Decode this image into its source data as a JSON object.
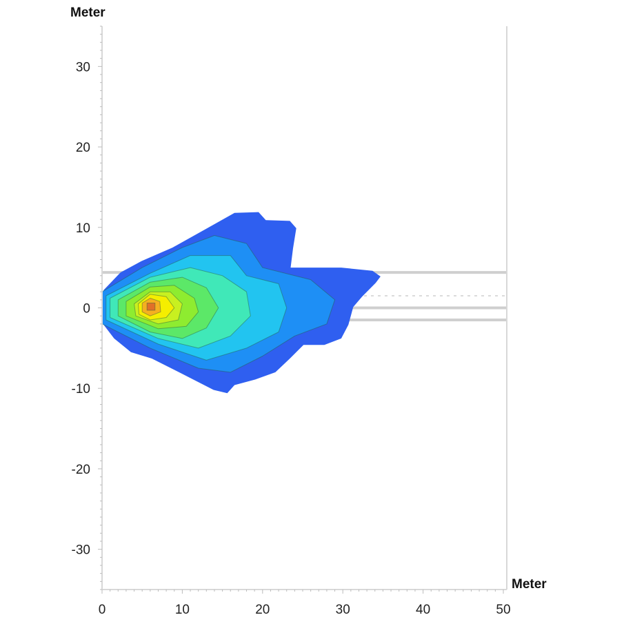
{
  "chart_data": {
    "type": "heatmap",
    "subtype": "filled-contour",
    "title": "",
    "xlabel": "Meter",
    "ylabel": "Meter",
    "xlim": [
      0,
      50
    ],
    "ylim": [
      -35,
      35
    ],
    "xticks": [
      0,
      10,
      20,
      30,
      40,
      50
    ],
    "yticks": [
      30,
      20,
      10,
      0,
      -10,
      -20,
      -30
    ],
    "grid": false,
    "legend": "none",
    "peak": [
      6,
      0.2
    ],
    "reference_lines": [
      {
        "y": 4.4,
        "style": "solid"
      },
      {
        "y": 1.5,
        "style": "dashed"
      },
      {
        "y": 0,
        "style": "solid"
      },
      {
        "y": -1.5,
        "style": "solid"
      }
    ],
    "contour_levels": [
      {
        "color": "#2f5ff0",
        "points": [
          [
            0.2,
            2.2
          ],
          [
            2.3,
            4.4
          ],
          [
            4.9,
            5.8
          ],
          [
            8.8,
            7.5
          ],
          [
            13.1,
            9.9
          ],
          [
            16.5,
            11.8
          ],
          [
            19.5,
            11.9
          ],
          [
            20.4,
            10.9
          ],
          [
            23.4,
            10.8
          ],
          [
            24.2,
            9.9
          ],
          [
            23.8,
            7.4
          ],
          [
            23.5,
            5.0
          ],
          [
            29.8,
            5.0
          ],
          [
            33.7,
            4.6
          ],
          [
            34.7,
            3.9
          ],
          [
            34.1,
            3.1
          ],
          [
            32.4,
            1.4
          ],
          [
            31.3,
            0.1
          ],
          [
            30.7,
            -2.1
          ],
          [
            29.8,
            -3.8
          ],
          [
            27.7,
            -4.6
          ],
          [
            25.1,
            -4.6
          ],
          [
            23.4,
            -6.3
          ],
          [
            21.6,
            -8.0
          ],
          [
            19.1,
            -8.9
          ],
          [
            16.5,
            -9.6
          ],
          [
            15.6,
            -10.6
          ],
          [
            13.9,
            -10.2
          ],
          [
            9.6,
            -8.0
          ],
          [
            6.2,
            -6.3
          ],
          [
            3.6,
            -5.5
          ],
          [
            1.5,
            -3.8
          ],
          [
            0.2,
            -2.1
          ]
        ]
      },
      {
        "color": "#1e8ff5",
        "points": [
          [
            0,
            2
          ],
          [
            5,
            5
          ],
          [
            10,
            7.5
          ],
          [
            14,
            9
          ],
          [
            18,
            8
          ],
          [
            20,
            5
          ],
          [
            26,
            3.5
          ],
          [
            29,
            1
          ],
          [
            28,
            -2
          ],
          [
            24,
            -3.5
          ],
          [
            20,
            -6
          ],
          [
            16,
            -8
          ],
          [
            12,
            -7.5
          ],
          [
            6,
            -5
          ],
          [
            0,
            -2
          ]
        ]
      },
      {
        "color": "#22c4f0",
        "points": [
          [
            0.5,
            1.5
          ],
          [
            6,
            4.3
          ],
          [
            11,
            6.5
          ],
          [
            16,
            6.5
          ],
          [
            18,
            4
          ],
          [
            22,
            3
          ],
          [
            23,
            0
          ],
          [
            22,
            -3
          ],
          [
            18,
            -5
          ],
          [
            13,
            -6.5
          ],
          [
            7,
            -4.5
          ],
          [
            0.5,
            -1.5
          ]
        ]
      },
      {
        "color": "#40e8b8",
        "points": [
          [
            1,
            1.2
          ],
          [
            6,
            3.8
          ],
          [
            11,
            5
          ],
          [
            15,
            4
          ],
          [
            18,
            2
          ],
          [
            18.5,
            -1
          ],
          [
            16,
            -3.5
          ],
          [
            12,
            -5
          ],
          [
            7,
            -3.8
          ],
          [
            1,
            -1.2
          ]
        ]
      },
      {
        "color": "#5ce868",
        "points": [
          [
            2,
            1
          ],
          [
            6,
            3.2
          ],
          [
            10,
            3.8
          ],
          [
            13,
            2.5
          ],
          [
            14.5,
            0
          ],
          [
            13,
            -2.5
          ],
          [
            10,
            -3.8
          ],
          [
            6,
            -3
          ],
          [
            2,
            -1
          ]
        ]
      },
      {
        "color": "#8eec30",
        "points": [
          [
            3,
            0.8
          ],
          [
            6,
            2.6
          ],
          [
            9,
            2.8
          ],
          [
            11.5,
            1.2
          ],
          [
            12,
            -0.5
          ],
          [
            10.5,
            -2.3
          ],
          [
            7,
            -2.6
          ],
          [
            3,
            -1
          ]
        ]
      },
      {
        "color": "#c8f020",
        "points": [
          [
            4,
            0.5
          ],
          [
            6,
            2
          ],
          [
            8.5,
            2
          ],
          [
            10,
            0.5
          ],
          [
            9.5,
            -1.5
          ],
          [
            7,
            -2
          ],
          [
            4.2,
            -1
          ]
        ]
      },
      {
        "color": "#f5ee00",
        "points": [
          [
            4.5,
            0.5
          ],
          [
            6,
            1.7
          ],
          [
            8,
            1.4
          ],
          [
            9,
            0
          ],
          [
            8,
            -1.2
          ],
          [
            6,
            -1.5
          ],
          [
            4.6,
            -0.8
          ]
        ]
      },
      {
        "color": "#f5b020",
        "points": [
          [
            5,
            0.6
          ],
          [
            6,
            1.2
          ],
          [
            7.2,
            0.8
          ],
          [
            7.3,
            -0.5
          ],
          [
            6,
            -1
          ],
          [
            5,
            -0.5
          ]
        ]
      },
      {
        "color": "#e07028",
        "points": [
          [
            5.6,
            0.6
          ],
          [
            6.6,
            0.6
          ],
          [
            6.6,
            -0.3
          ],
          [
            5.6,
            -0.3
          ]
        ]
      }
    ]
  }
}
